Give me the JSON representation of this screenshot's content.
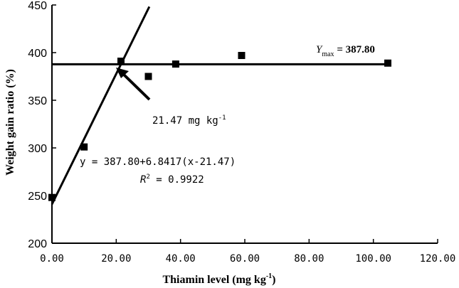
{
  "chart_data": {
    "type": "scatter",
    "xlabel": "Thiamin level (mg kg",
    "xlabel_sup": "-1",
    "xlabel_close": ")",
    "ylabel": "Weight gain ratio (%)",
    "xlim": [
      0,
      120
    ],
    "ylim": [
      200,
      450
    ],
    "x_ticks": [
      0,
      20,
      40,
      60,
      80,
      100,
      120
    ],
    "x_tick_labels": [
      "0.00",
      "20.00",
      "40.00",
      "60.00",
      "80.00",
      "100.00",
      "120.00"
    ],
    "y_ticks": [
      200,
      250,
      300,
      350,
      400,
      450
    ],
    "y_tick_labels": [
      "200",
      "250",
      "300",
      "350",
      "400",
      "450"
    ],
    "grid": false,
    "points": [
      {
        "x": 0,
        "y": 248
      },
      {
        "x": 10,
        "y": 301
      },
      {
        "x": 21.47,
        "y": 391
      },
      {
        "x": 30,
        "y": 375
      },
      {
        "x": 38.5,
        "y": 388
      },
      {
        "x": 59,
        "y": 397
      },
      {
        "x": 104.5,
        "y": 389
      }
    ],
    "lines": [
      {
        "kind": "rising",
        "formula": "y = 387.80 + 6.8417 (x - 21.47)",
        "x_start": 0,
        "x_end": 30.3
      },
      {
        "kind": "plateau",
        "y": 387.8,
        "x_start": 0,
        "x_end": 104.5
      }
    ],
    "annotations": {
      "ymax": {
        "symbol": "Y",
        "subscript": "max",
        "text": " = 387.80"
      },
      "breakpoint": {
        "text": "21.47 mg kg",
        "sup": "-1"
      },
      "equation": "y = 387.80+6.8417(x-21.47)",
      "r2": {
        "symbol": "R",
        "sup": "2",
        "text": " = 0.9922"
      }
    }
  }
}
